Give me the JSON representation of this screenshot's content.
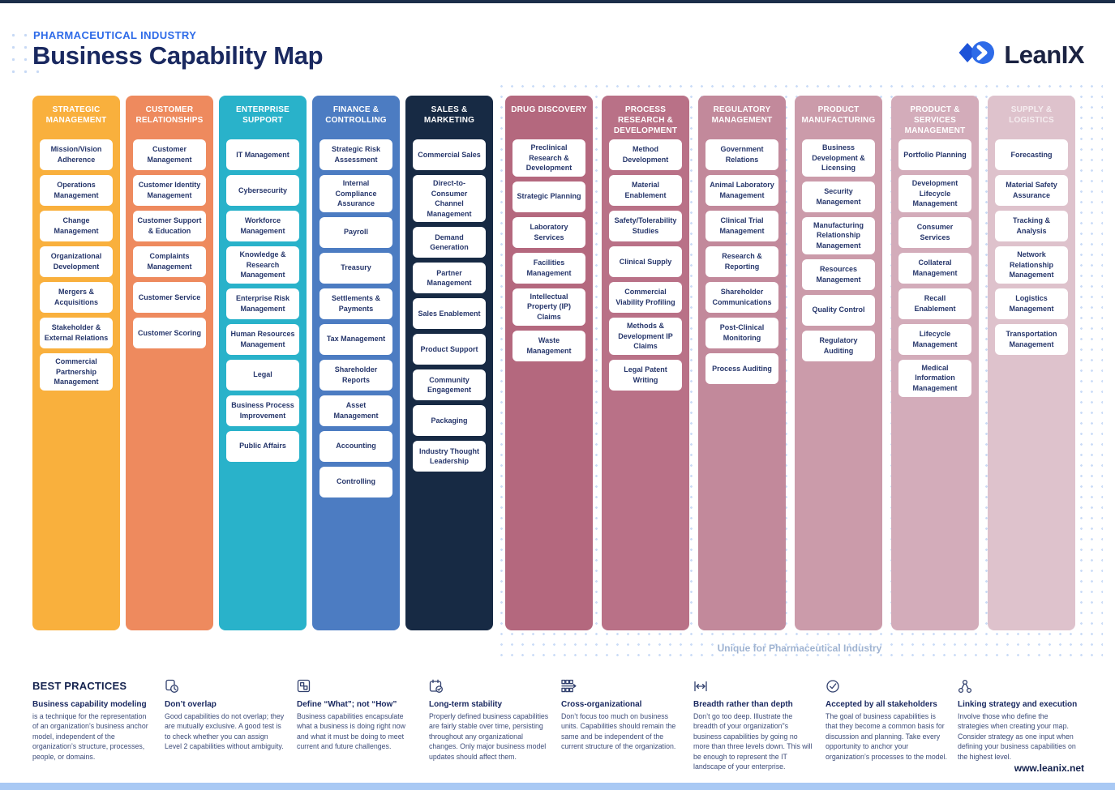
{
  "header": {
    "eyebrow": "PHARMACEUTICAL INDUSTRY",
    "title": "Business Capability Map",
    "logo_text": "LeanIX"
  },
  "map": {
    "unique_label": "Unique for Pharmaceutical Industry",
    "columns": [
      {
        "group": "core",
        "title": "STRATEGIC MANAGEMENT",
        "color": "#F9B03D",
        "cards": [
          "Mission/Vision Adherence",
          "Operations Management",
          "Change Management",
          "Organizational Development",
          "Mergers & Acquisitions",
          "Stakeholder & External Relations",
          "Commercial Partnership Management"
        ]
      },
      {
        "group": "core",
        "title": "CUSTOMER RELATIONSHIPS",
        "color": "#EE8A5E",
        "cards": [
          "Customer Management",
          "Customer Identity Management",
          "Customer Support & Education",
          "Complaints Management",
          "Customer Service",
          "Customer Scoring"
        ]
      },
      {
        "group": "core",
        "title": "ENTERPRISE SUPPORT",
        "color": "#29B2CA",
        "cards": [
          "IT Management",
          "Cybersecurity",
          "Workforce Management",
          "Knowledge & Research Management",
          "Enterprise Risk Management",
          "Human Resources Management",
          "Legal",
          "Business Process Improvement",
          "Public Affairs"
        ]
      },
      {
        "group": "core",
        "title": "FINANCE & CONTROLLING",
        "color": "#4C7CC2",
        "cards": [
          "Strategic Risk Assessment",
          "Internal Compliance Assurance",
          "Payroll",
          "Treasury",
          "Settlements & Payments",
          "Tax Management",
          "Shareholder Reports",
          "Asset Management",
          "Accounting",
          "Controlling"
        ]
      },
      {
        "group": "core",
        "title": "SALES & MARKETING",
        "color": "#172A44",
        "cards": [
          "Commercial Sales",
          "Direct-to-Consumer Channel Management",
          "Demand Generation",
          "Partner Management",
          "Sales Enablement",
          "Product Support",
          "Community Engagement",
          "Packaging",
          "Industry Thought Leadership"
        ]
      },
      {
        "group": "pharma",
        "title": "DRUG DISCOVERY",
        "color": "#B4687E",
        "cards": [
          "Preclinical Research & Development",
          "Strategic Planning",
          "Laboratory Services",
          "Facilities Management",
          "Intellectual Property (IP) Claims",
          "Waste Management"
        ]
      },
      {
        "group": "pharma",
        "title": "PROCESS RESEARCH & DEVELOPMENT",
        "color": "#B97187",
        "cards": [
          "Method Development",
          "Material Enablement",
          "Safety/Tolerability Studies",
          "Clinical Supply",
          "Commercial Viability Profiling",
          "Methods & Development IP Claims",
          "Legal Patent Writing"
        ]
      },
      {
        "group": "pharma",
        "title": "REGULATORY MANAGEMENT",
        "color": "#C2899B",
        "cards": [
          "Government Relations",
          "Animal Laboratory Management",
          "Clinical Trial Management",
          "Research & Reporting",
          "Shareholder Communications",
          "Post-Clinical Monitoring",
          "Process Auditing"
        ]
      },
      {
        "group": "pharma",
        "title": "PRODUCT MANUFACTURING",
        "color": "#CB9BAA",
        "cards": [
          "Business Development & Licensing",
          "Security Management",
          "Manufacturing Relationship Management",
          "Resources Management",
          "Quality Control",
          "Regulatory Auditing"
        ]
      },
      {
        "group": "pharma",
        "title": "PRODUCT & SERVICES MANAGEMENT",
        "color": "#D3ACBA",
        "cards": [
          "Portfolio Planning",
          "Development Lifecycle Management",
          "Consumer Services",
          "Collateral Management",
          "Recall Enablement",
          "Lifecycle Management",
          "Medical Information Management"
        ]
      },
      {
        "group": "pharma",
        "title": "SUPPLY & LOGISTICS",
        "color": "#DEC2CC",
        "title_muted": true,
        "cards": [
          "Forecasting",
          "Material Safety Assurance",
          "Tracking & Analysis",
          "Network Relationship Management",
          "Logistics Management",
          "Transportation Management"
        ]
      }
    ]
  },
  "best_practices": {
    "heading": "BEST PRACTICES",
    "items": [
      {
        "icon": "",
        "title": "Business capability modeling",
        "body": "is a technique for the representation of an organization’s business anchor model, independent of the organization’s structure, processes, people, or domains."
      },
      {
        "icon": "overlap-icon",
        "title": "Don’t overlap",
        "body": "Good capabilities do not overlap; they are mutually exclusive. A good test is to check whether you can assign Level 2 capabilities without ambiguity."
      },
      {
        "icon": "define-icon",
        "title": "Define “What”; not “How”",
        "body": "Business capabilities encapsulate what a business is doing right now and what it must be doing to meet current and future challenges."
      },
      {
        "icon": "calendar-icon",
        "title": "Long-term stability",
        "body": "Properly defined business capabilities are fairly stable over time, persisting throughout any organizational changes. Only major business model updates should affect them."
      },
      {
        "icon": "cross-org-icon",
        "title": "Cross-organizational",
        "body": "Don’t focus too much on business units. Capabilities should remain the same and be independent of the current structure of the organization."
      },
      {
        "icon": "breadth-icon",
        "title": "Breadth rather than depth",
        "body": "Don’t go too deep. Illustrate the breadth of your organization\"s business capabilities by going no more than three levels down. This will be enough to represent the IT landscape of your enterprise."
      },
      {
        "icon": "check-circle-icon",
        "title": "Accepted by all stakeholders",
        "body": "The goal of business capabilities is that they become a common basis for discussion and planning. Take every opportunity to anchor your organization’s processes to the model."
      },
      {
        "icon": "link-strategy-icon",
        "title": "Linking strategy and execution",
        "body": "Involve those who define the strategies when creating your map. Consider strategy as one input when defining your business capabilities on the highest level."
      }
    ]
  },
  "footer": {
    "url": "www.leanix.net"
  },
  "colors": {
    "accent_blue": "#2E6BE8",
    "navy": "#1A2960",
    "dot_blue": "#CBDCF7",
    "footer_bar": "#A9C9F4"
  }
}
